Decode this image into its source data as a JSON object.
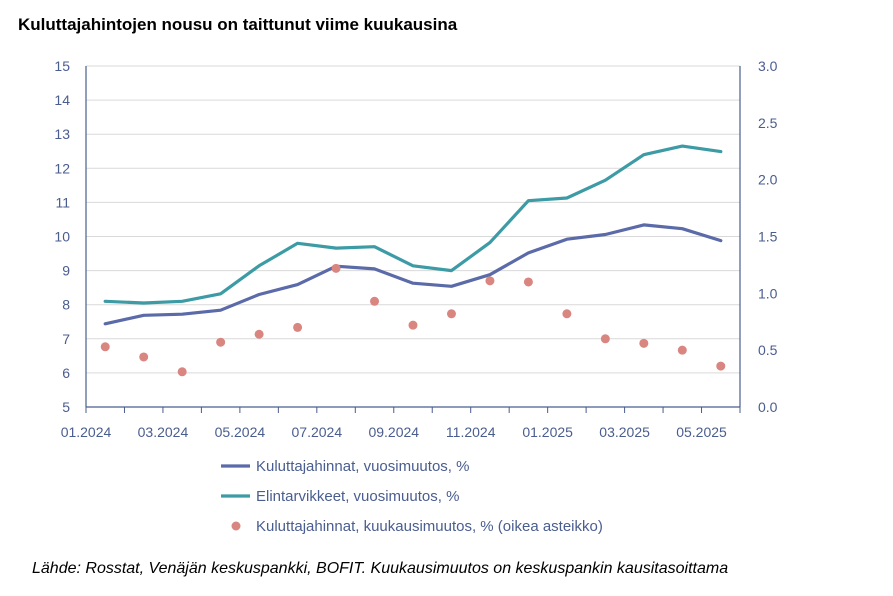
{
  "chart_data": {
    "type": "line",
    "title": "Kuluttajahintojen nousu on taittunut viime kuukausina",
    "source": "Lähde: Rosstat, Venäjän keskuspankki, BOFIT. Kuukausimuutos on keskuspankin kausitasoittama",
    "x": [
      "01.2024",
      "02.2024",
      "03.2024",
      "04.2024",
      "05.2024",
      "06.2024",
      "07.2024",
      "08.2024",
      "09.2024",
      "10.2024",
      "11.2024",
      "12.2024",
      "01.2025",
      "02.2025",
      "03.2025",
      "04.2025",
      "05.2025"
    ],
    "x_tick_labels": [
      "01.2024",
      "03.2024",
      "05.2024",
      "07.2024",
      "09.2024",
      "11.2024",
      "01.2025",
      "03.2025",
      "05.2025"
    ],
    "ylim_left": [
      5,
      15
    ],
    "yticks_left": [
      "5",
      "6",
      "7",
      "8",
      "9",
      "10",
      "11",
      "12",
      "13",
      "14",
      "15"
    ],
    "ylim_right": [
      0.0,
      3.0
    ],
    "yticks_right": [
      "0.0",
      "0.5",
      "1.0",
      "1.5",
      "2.0",
      "2.5",
      "3.0"
    ],
    "series": [
      {
        "name": "Kuluttajahinnat, vuosimuutos, %",
        "kind": "line",
        "axis": "left",
        "color": "#5b6aa8",
        "values": [
          7.44,
          7.69,
          7.72,
          7.84,
          8.3,
          8.59,
          9.13,
          9.05,
          8.63,
          8.54,
          8.88,
          9.52,
          9.92,
          10.06,
          10.34,
          10.23,
          9.88
        ]
      },
      {
        "name": "Elintarvikkeet, vuosimuutos, %",
        "kind": "line",
        "axis": "left",
        "color": "#3c9ba5",
        "values": [
          8.1,
          8.05,
          8.1,
          8.32,
          9.14,
          9.8,
          9.66,
          9.7,
          9.14,
          9.0,
          9.82,
          11.05,
          11.13,
          11.65,
          12.4,
          12.65,
          12.49
        ]
      },
      {
        "name": "Kuluttajahinnat, kuukausimuutos, % (oikea asteikko)",
        "kind": "scatter",
        "axis": "right",
        "color": "#d98580",
        "values": [
          0.53,
          0.44,
          0.31,
          0.57,
          0.64,
          0.7,
          1.22,
          0.93,
          0.72,
          0.82,
          1.11,
          1.1,
          0.82,
          0.6,
          0.56,
          0.5,
          0.36
        ]
      }
    ],
    "grid": "horizontal",
    "legend_position": "bottom"
  }
}
